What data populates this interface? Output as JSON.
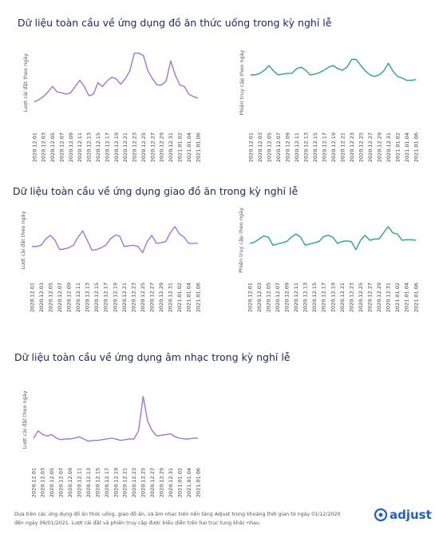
{
  "sections": [
    {
      "title": "Dữ liệu toàn cầu về ứng dụng đồ ăn thức uống trong kỳ nghỉ lễ"
    },
    {
      "title": "Dữ liệu toàn cầu về ứng dụng giao đồ ăn trong kỳ nghỉ lễ"
    },
    {
      "title": "Dữ liệu toàn cầu về ứng dụng âm nhạc trong kỳ nghỉ lễ"
    }
  ],
  "chart_data": [
    {
      "type": "line",
      "y_label": "Lượt cài đặt theo ngày",
      "ylim": [
        0,
        100
      ],
      "categories": [
        "2020.12.01",
        null,
        "2020.12.03",
        null,
        "2020.12.05",
        null,
        "2020.12.07",
        null,
        "2020.12.09",
        null,
        "2020.12.11",
        null,
        "2020.12.13",
        null,
        "2020.12.15",
        null,
        "2020.12.17",
        null,
        "2020.12.19",
        null,
        "2020.12.21",
        null,
        "2020.12.23",
        null,
        "2020.12.25",
        null,
        "2020.12.27",
        null,
        "2020.12.29",
        null,
        "2020.12.31",
        null,
        "2021.01.02",
        null,
        "2021.01.04",
        null,
        "2021.01.06"
      ],
      "series": [
        {
          "color": "#9b6be0",
          "values": [
            25,
            28,
            32,
            38,
            45,
            38,
            37,
            35,
            37,
            45,
            53,
            45,
            33,
            35,
            50,
            45,
            52,
            57,
            55,
            48,
            55,
            65,
            88,
            88,
            85,
            65,
            55,
            47,
            47,
            52,
            78,
            60,
            47,
            45,
            35,
            32,
            30
          ]
        }
      ]
    },
    {
      "type": "line",
      "y_label": "Phiên truy cập theo ngày",
      "ylim": [
        0,
        100
      ],
      "categories": [
        "2020.12.01",
        null,
        "2020.12.03",
        null,
        "2020.12.05",
        null,
        "2020.12.07",
        null,
        "2020.12.09",
        null,
        "2020.12.11",
        null,
        "2020.12.13",
        null,
        "2020.12.15",
        null,
        "2020.12.17",
        null,
        "2020.12.19",
        null,
        "2020.12.21",
        null,
        "2020.12.23",
        null,
        "2020.12.25",
        null,
        "2020.12.27",
        null,
        "2020.12.29",
        null,
        "2020.12.31",
        null,
        "2021.01.02",
        null,
        "2021.01.04",
        null,
        "2021.01.06"
      ],
      "series": [
        {
          "color": "#1aa37a",
          "values": [
            60,
            60,
            62,
            66,
            72,
            65,
            60,
            61,
            62,
            62,
            68,
            70,
            66,
            60,
            61,
            63,
            66,
            70,
            72,
            68,
            66,
            70,
            80,
            80,
            72,
            65,
            60,
            58,
            60,
            65,
            75,
            65,
            58,
            56,
            53,
            53,
            54
          ]
        }
      ]
    },
    {
      "type": "line",
      "y_label": "Lượt cài đặt theo ngày",
      "ylim": [
        0,
        100
      ],
      "categories": [
        "2020.12.01",
        null,
        "2020.12.03",
        null,
        "2020.12.05",
        null,
        "2020.12.07",
        null,
        "2020.12.09",
        null,
        "2020.12.11",
        null,
        "2020.12.13",
        null,
        "2020.12.15",
        null,
        "2020.12.17",
        null,
        "2020.12.19",
        null,
        "2020.12.21",
        null,
        "2020.12.23",
        null,
        "2020.12.25",
        null,
        "2020.12.27",
        null,
        "2020.12.29",
        null,
        "2020.12.31",
        null,
        "2021.01.02",
        null,
        "2021.01.04",
        null,
        "2021.01.06"
      ],
      "series": [
        {
          "color": "#9b6be0",
          "values": [
            40,
            40,
            42,
            52,
            58,
            50,
            35,
            36,
            38,
            42,
            55,
            65,
            50,
            34,
            35,
            38,
            42,
            52,
            58,
            57,
            40,
            41,
            42,
            40,
            30,
            48,
            58,
            45,
            46,
            48,
            62,
            72,
            60,
            55,
            45,
            45,
            45
          ]
        }
      ]
    },
    {
      "type": "line",
      "y_label": "Phiên truy cập theo ngày",
      "ylim": [
        0,
        100
      ],
      "categories": [
        "2020.12.01",
        null,
        "2020.12.03",
        null,
        "2020.12.05",
        null,
        "2020.12.07",
        null,
        "2020.12.09",
        null,
        "2020.12.11",
        null,
        "2020.12.13",
        null,
        "2020.12.15",
        null,
        "2020.12.17",
        null,
        "2020.12.19",
        null,
        "2020.12.21",
        null,
        "2020.12.23",
        null,
        "2020.12.25",
        null,
        "2020.12.27",
        null,
        "2020.12.29",
        null,
        "2020.12.31",
        null,
        "2021.01.02",
        null,
        "2021.01.04",
        null,
        "2021.01.06"
      ],
      "series": [
        {
          "color": "#1aa37a",
          "values": [
            45,
            47,
            52,
            57,
            55,
            42,
            44,
            46,
            48,
            55,
            60,
            55,
            42,
            44,
            46,
            48,
            56,
            58,
            55,
            45,
            48,
            49,
            48,
            35,
            50,
            58,
            50,
            52,
            52,
            62,
            72,
            62,
            60,
            50,
            51,
            51,
            50
          ]
        }
      ]
    },
    {
      "type": "line",
      "y_label": "Lượt cài đặt theo ngày",
      "ylim": [
        0,
        100
      ],
      "categories": [
        "2020.12.01",
        null,
        "2020.12.03",
        null,
        "2020.12.05",
        null,
        "2020.12.07",
        null,
        "2020.12.09",
        null,
        "2020.12.11",
        null,
        "2020.12.13",
        null,
        "2020.12.15",
        null,
        "2020.12.17",
        null,
        "2020.12.19",
        null,
        "2020.12.21",
        null,
        "2020.12.23",
        null,
        "2020.12.25",
        null,
        "2020.12.27",
        null,
        "2020.12.29",
        null,
        "2020.12.31",
        null,
        "2021.01.02",
        null,
        "2021.01.04",
        null,
        "2021.01.06"
      ],
      "series": [
        {
          "color": "#9b6be0",
          "values": [
            25,
            35,
            30,
            28,
            30,
            25,
            23,
            24,
            24,
            25,
            27,
            24,
            21,
            22,
            22,
            23,
            24,
            25,
            24,
            22,
            23,
            24,
            24,
            35,
            82,
            48,
            35,
            28,
            29,
            30,
            31,
            27,
            25,
            24,
            24,
            25,
            25
          ]
        }
      ]
    }
  ],
  "footer": {
    "lines": [
      "Dựa trên các ứng dụng đồ ăn thức uống, giao đồ ăn, và âm nhạc trên nền tảng Adjust trong khoảng thời gian từ ngày 01/12/2020",
      "đến ngày 06/01/2021. Lượt cài đặt và phiên truy cập được biểu diễn trên hai trục tung khác nhau"
    ],
    "logo": "adjust"
  }
}
